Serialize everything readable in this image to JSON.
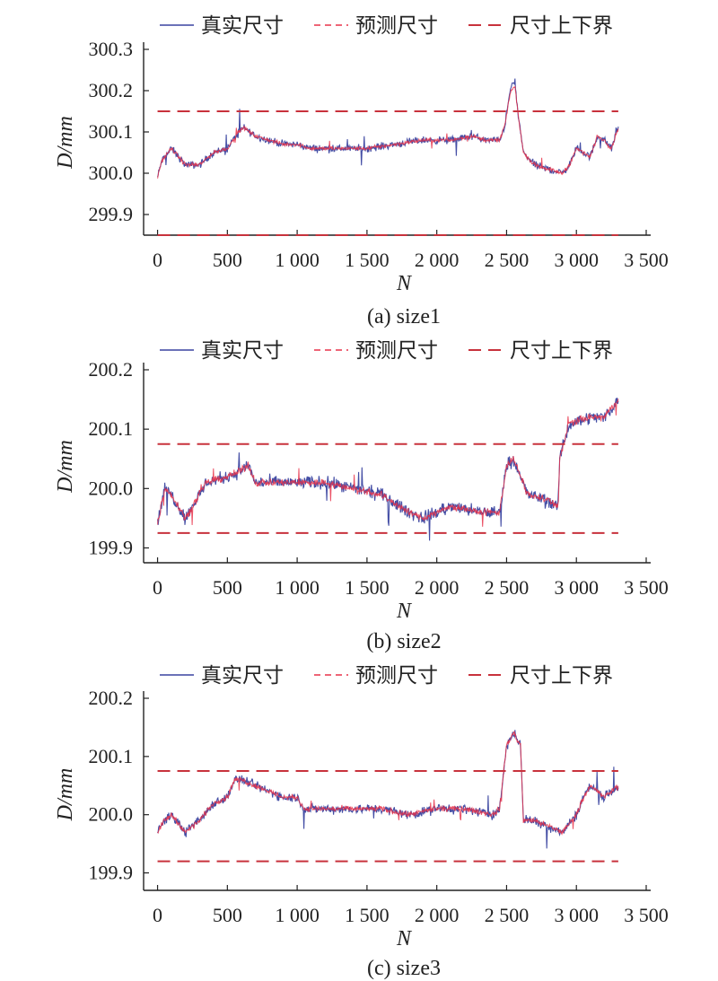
{
  "colors": {
    "actual": "#3a44a0",
    "predicted": "#e8324a",
    "bounds": "#c8323c"
  },
  "legend": [
    "真实尺寸",
    "预测尺寸",
    "尺寸上下界"
  ],
  "chart_data": [
    {
      "type": "line",
      "caption": "(a) size1",
      "xlabel": "N",
      "ylabel": "D/mm",
      "xlim": [
        -100,
        3500
      ],
      "ylim": [
        299.85,
        300.3
      ],
      "xticks": [
        0,
        500,
        1000,
        1500,
        2000,
        2500,
        3000,
        3500
      ],
      "xtick_labels": [
        "0",
        "500",
        "1 000",
        "1 500",
        "2 000",
        "2 500",
        "3 000",
        "3 500"
      ],
      "yticks": [
        299.9,
        300.0,
        300.1,
        300.2,
        300.3
      ],
      "ytick_labels": [
        "299.9",
        "300.0",
        "300.1",
        "300.2",
        "300.3"
      ],
      "bounds": {
        "upper": 300.15,
        "lower": 299.85,
        "x": [
          0,
          3300
        ]
      },
      "series": [
        {
          "key": "actual",
          "noise": 0.013,
          "x": [
            0,
            30,
            100,
            200,
            300,
            400,
            500,
            580,
            620,
            700,
            800,
            900,
            1000,
            1100,
            1300,
            1500,
            1700,
            1900,
            2100,
            2250,
            2350,
            2450,
            2490,
            2530,
            2560,
            2580,
            2620,
            2700,
            2800,
            2900,
            2950,
            3000,
            3050,
            3100,
            3150,
            3200,
            3250,
            3300
          ],
          "y": [
            299.99,
            300.03,
            300.06,
            300.02,
            300.02,
            300.05,
            300.06,
            300.1,
            300.11,
            300.09,
            300.08,
            300.07,
            300.07,
            300.06,
            300.06,
            300.06,
            300.07,
            300.08,
            300.08,
            300.09,
            300.08,
            300.08,
            300.12,
            300.21,
            300.22,
            300.15,
            300.05,
            300.02,
            300.01,
            300.0,
            300.02,
            300.06,
            300.05,
            300.04,
            300.09,
            300.08,
            300.06,
            300.11
          ]
        },
        {
          "key": "predicted",
          "noise": 0.007,
          "x": [
            0,
            30,
            100,
            200,
            300,
            400,
            500,
            580,
            620,
            700,
            800,
            900,
            1000,
            1100,
            1300,
            1500,
            1700,
            1900,
            2100,
            2250,
            2350,
            2450,
            2490,
            2530,
            2560,
            2580,
            2620,
            2700,
            2800,
            2900,
            2950,
            3000,
            3050,
            3100,
            3150,
            3200,
            3250,
            3300
          ],
          "y": [
            299.99,
            300.03,
            300.06,
            300.02,
            300.02,
            300.05,
            300.06,
            300.1,
            300.11,
            300.09,
            300.08,
            300.07,
            300.07,
            300.06,
            300.06,
            300.06,
            300.07,
            300.08,
            300.08,
            300.09,
            300.08,
            300.08,
            300.12,
            300.2,
            300.21,
            300.15,
            300.05,
            300.02,
            300.01,
            300.0,
            300.02,
            300.06,
            300.05,
            300.04,
            300.09,
            300.08,
            300.06,
            300.11
          ]
        }
      ]
    },
    {
      "type": "line",
      "caption": "(b) size2",
      "xlabel": "N",
      "ylabel": "D/mm",
      "xlim": [
        -100,
        3500
      ],
      "ylim": [
        199.875,
        200.2
      ],
      "xticks": [
        0,
        500,
        1000,
        1500,
        2000,
        2500,
        3000,
        3500
      ],
      "xtick_labels": [
        "0",
        "500",
        "1 000",
        "1 500",
        "2 000",
        "2 500",
        "3 000",
        "3 500"
      ],
      "yticks": [
        199.9,
        200.0,
        200.1,
        200.2
      ],
      "ytick_labels": [
        "199.9",
        "200.0",
        "200.1",
        "200.2"
      ],
      "bounds": {
        "upper": 200.075,
        "lower": 199.925,
        "x": [
          0,
          3300
        ]
      },
      "series": [
        {
          "key": "actual",
          "noise": 0.016,
          "x": [
            0,
            50,
            100,
            200,
            250,
            350,
            500,
            600,
            650,
            700,
            800,
            1000,
            1200,
            1400,
            1600,
            1800,
            1900,
            2100,
            2300,
            2450,
            2500,
            2550,
            2600,
            2650,
            2800,
            2870,
            2880,
            2950,
            3100,
            3200,
            3300
          ],
          "y": [
            199.94,
            200.0,
            199.99,
            199.95,
            199.97,
            200.01,
            200.02,
            200.03,
            200.04,
            200.01,
            200.01,
            200.01,
            200.01,
            200.0,
            199.99,
            199.96,
            199.95,
            199.97,
            199.96,
            199.96,
            200.04,
            200.05,
            200.02,
            199.99,
            199.98,
            199.97,
            200.05,
            200.11,
            200.12,
            200.12,
            200.15
          ]
        },
        {
          "key": "predicted",
          "noise": 0.009,
          "x": [
            0,
            50,
            100,
            200,
            250,
            350,
            500,
            600,
            650,
            700,
            800,
            1000,
            1200,
            1400,
            1600,
            1800,
            1900,
            2100,
            2300,
            2450,
            2500,
            2550,
            2600,
            2650,
            2800,
            2870,
            2880,
            2950,
            3100,
            3200,
            3300
          ],
          "y": [
            199.94,
            200.0,
            199.99,
            199.95,
            199.97,
            200.01,
            200.02,
            200.03,
            200.04,
            200.01,
            200.01,
            200.01,
            200.01,
            200.0,
            199.99,
            199.96,
            199.95,
            199.97,
            199.96,
            199.96,
            200.04,
            200.05,
            200.02,
            199.99,
            199.98,
            199.97,
            200.05,
            200.11,
            200.12,
            200.12,
            200.15
          ]
        }
      ]
    },
    {
      "type": "line",
      "caption": "(c) size3",
      "xlabel": "N",
      "ylabel": "D/mm",
      "xlim": [
        -100,
        3500
      ],
      "ylim": [
        199.87,
        200.2
      ],
      "xticks": [
        0,
        500,
        1000,
        1500,
        2000,
        2500,
        3000,
        3500
      ],
      "xtick_labels": [
        "0",
        "500",
        "1 000",
        "1 500",
        "2 000",
        "2 500",
        "3 000",
        "3 500"
      ],
      "yticks": [
        199.9,
        200.0,
        200.1,
        200.2
      ],
      "ytick_labels": [
        "199.9",
        "200.0",
        "200.1",
        "200.2"
      ],
      "bounds": {
        "upper": 200.075,
        "lower": 199.92,
        "x": [
          0,
          3300
        ]
      },
      "series": [
        {
          "key": "actual",
          "noise": 0.012,
          "x": [
            0,
            50,
            100,
            200,
            300,
            400,
            500,
            550,
            600,
            700,
            800,
            900,
            1000,
            1050,
            1200,
            1400,
            1600,
            1800,
            2000,
            2200,
            2400,
            2450,
            2500,
            2550,
            2600,
            2620,
            2700,
            2800,
            2900,
            3000,
            3050,
            3100,
            3200,
            3250,
            3300
          ],
          "y": [
            199.97,
            199.99,
            200.0,
            199.97,
            199.99,
            200.02,
            200.03,
            200.06,
            200.06,
            200.05,
            200.04,
            200.03,
            200.03,
            200.01,
            200.01,
            200.01,
            200.01,
            200.0,
            200.01,
            200.01,
            200.0,
            200.01,
            200.12,
            200.14,
            200.12,
            199.99,
            199.99,
            199.98,
            199.97,
            200.0,
            200.03,
            200.05,
            200.03,
            200.04,
            200.05
          ]
        },
        {
          "key": "predicted",
          "noise": 0.007,
          "x": [
            0,
            50,
            100,
            200,
            300,
            400,
            500,
            550,
            600,
            700,
            800,
            900,
            1000,
            1050,
            1200,
            1400,
            1600,
            1800,
            2000,
            2200,
            2400,
            2450,
            2500,
            2550,
            2600,
            2620,
            2700,
            2800,
            2900,
            3000,
            3050,
            3100,
            3200,
            3250,
            3300
          ],
          "y": [
            199.97,
            199.99,
            200.0,
            199.97,
            199.99,
            200.02,
            200.03,
            200.06,
            200.06,
            200.05,
            200.04,
            200.03,
            200.03,
            200.01,
            200.01,
            200.01,
            200.01,
            200.0,
            200.01,
            200.01,
            200.0,
            200.01,
            200.12,
            200.14,
            200.12,
            199.99,
            199.99,
            199.98,
            199.97,
            200.0,
            200.03,
            200.05,
            200.03,
            200.04,
            200.05
          ]
        }
      ]
    }
  ]
}
